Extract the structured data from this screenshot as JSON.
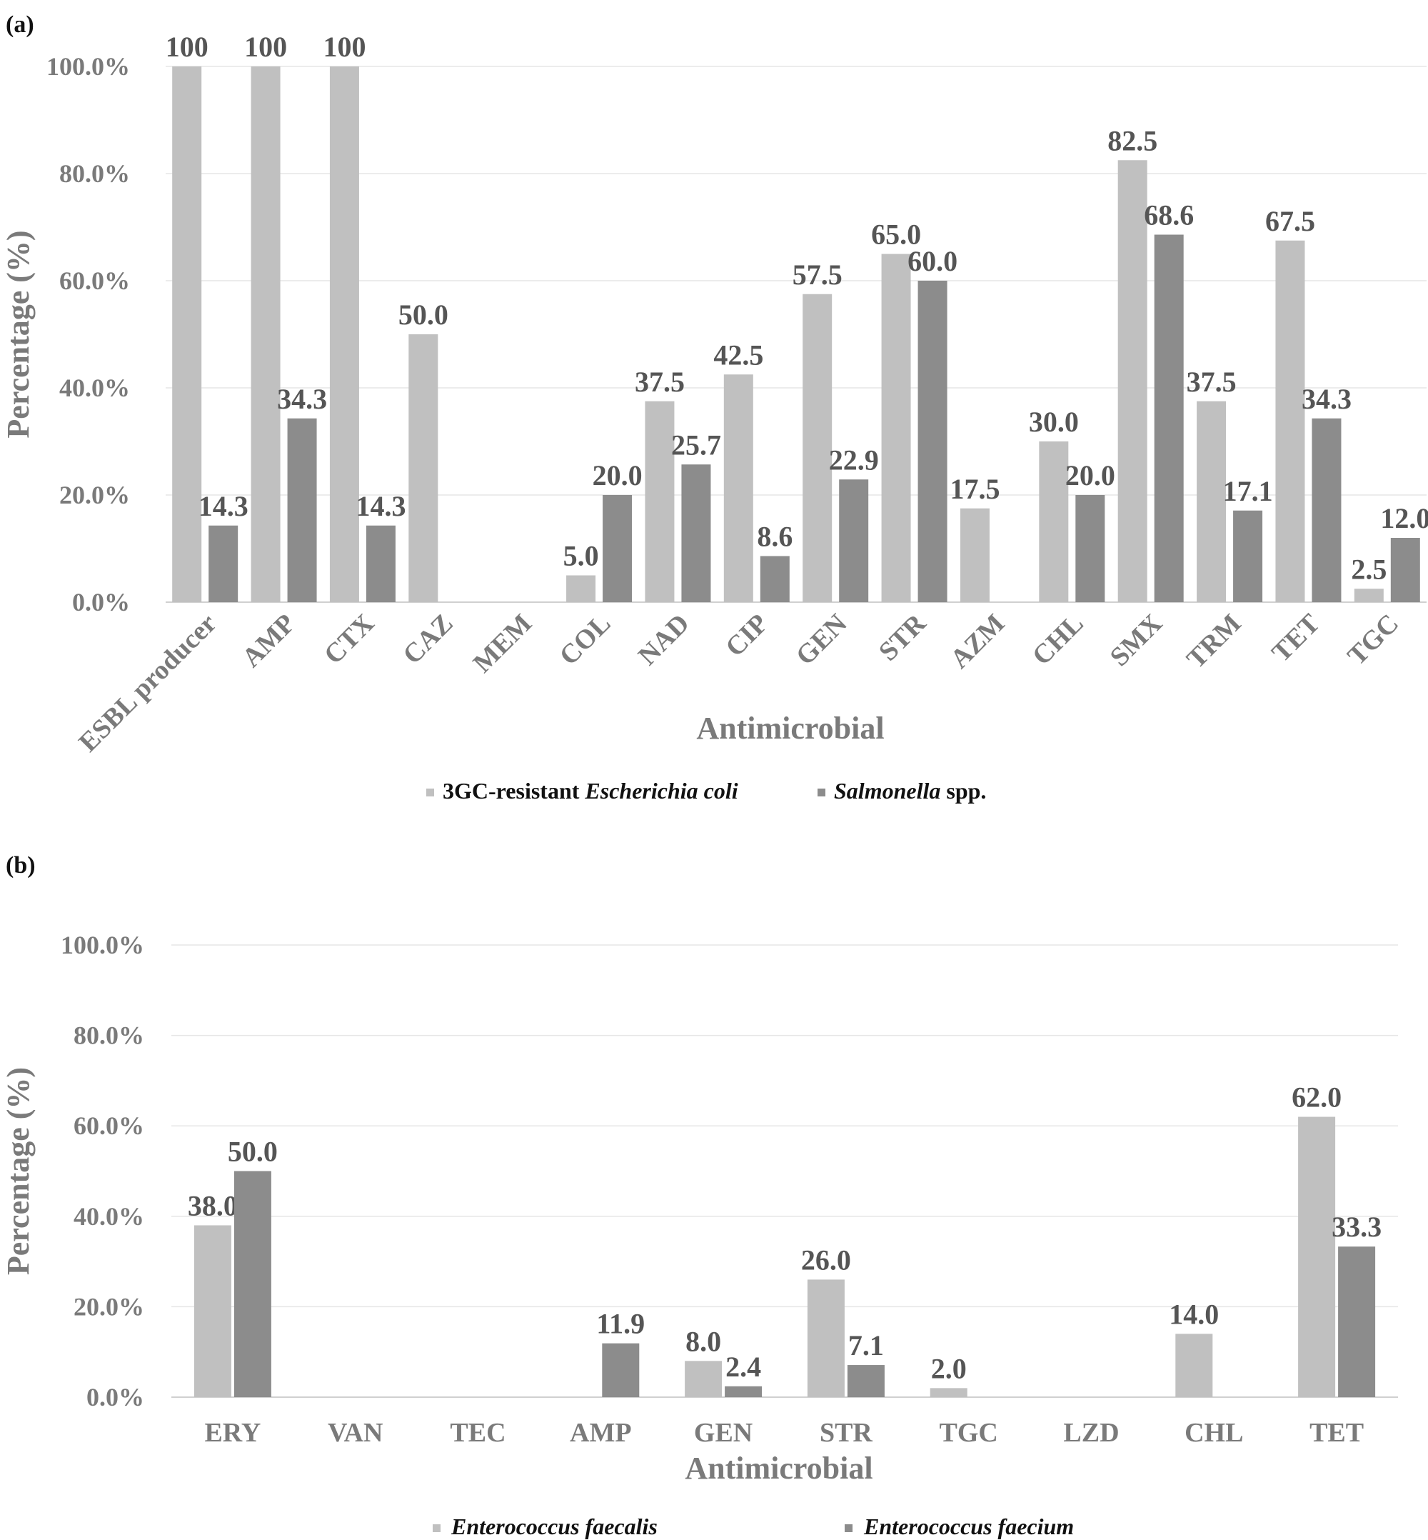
{
  "chart_data": [
    {
      "type": "bar",
      "panel_label": "(a)",
      "ylabel": "Percentage (%)",
      "xlabel": "Antimicrobial",
      "ylim": [
        0,
        100
      ],
      "yticks": [
        "0.0%",
        "20.0%",
        "40.0%",
        "60.0%",
        "80.0%",
        "100.0%"
      ],
      "categories": [
        "ESBL producer",
        "AMP",
        "CTX",
        "CAZ",
        "MEM",
        "COL",
        "NAD",
        "CIP",
        "GEN",
        "STR",
        "AZM",
        "CHL",
        "SMX",
        "TRM",
        "TET",
        "TGC"
      ],
      "series": [
        {
          "name_parts": [
            "3GC-resistant ",
            "Escherichia coli"
          ],
          "color": "#c0c0c0",
          "values": [
            100,
            100,
            100,
            50.0,
            null,
            5.0,
            37.5,
            42.5,
            57.5,
            65.0,
            17.5,
            30.0,
            82.5,
            37.5,
            67.5,
            2.5
          ],
          "labels": [
            "100",
            "100",
            "100",
            "50.0",
            "",
            "5.0",
            "37.5",
            "42.5",
            "57.5",
            "65.0",
            "17.5",
            "30.0",
            "82.5",
            "37.5",
            "67.5",
            "2.5"
          ]
        },
        {
          "name_parts": [
            "Salmonella",
            " spp."
          ],
          "color": "#8c8c8c",
          "values": [
            14.3,
            34.3,
            14.3,
            null,
            null,
            20.0,
            25.7,
            8.6,
            22.9,
            60.0,
            null,
            20.0,
            68.6,
            17.1,
            34.3,
            12.0
          ],
          "labels": [
            "14.3",
            "34.3",
            "14.3",
            "",
            "",
            "20.0",
            "25.7",
            "8.6",
            "22.9",
            "60.0",
            "",
            "20.0",
            "68.6",
            "17.1",
            "34.3",
            "12.0"
          ]
        }
      ],
      "legend_position": "bottom"
    },
    {
      "type": "bar",
      "panel_label": "(b)",
      "ylabel": "Percentage (%)",
      "xlabel": "Antimicrobial",
      "ylim": [
        0,
        100
      ],
      "yticks": [
        "0.0%",
        "20.0%",
        "40.0%",
        "60.0%",
        "80.0%",
        "100.0%"
      ],
      "categories": [
        "ERY",
        "VAN",
        "TEC",
        "AMP",
        "GEN",
        "STR",
        "TGC",
        "LZD",
        "CHL",
        "TET"
      ],
      "series": [
        {
          "name_parts": [
            "Enterococcus faecalis"
          ],
          "color": "#c0c0c0",
          "values": [
            38.0,
            null,
            null,
            null,
            8.0,
            26.0,
            2.0,
            null,
            14.0,
            62.0
          ],
          "labels": [
            "38.0",
            "",
            "",
            "",
            "8.0",
            "26.0",
            "2.0",
            "",
            "14.0",
            "62.0"
          ]
        },
        {
          "name_parts": [
            "Enterococcus faecium"
          ],
          "color": "#8c8c8c",
          "values": [
            50.0,
            null,
            null,
            11.9,
            2.4,
            7.1,
            null,
            null,
            null,
            33.3
          ],
          "labels": [
            "50.0",
            "",
            "",
            "11.9",
            "2.4",
            "7.1",
            "",
            "",
            "",
            "33.3"
          ]
        }
      ],
      "legend_position": "bottom"
    }
  ]
}
